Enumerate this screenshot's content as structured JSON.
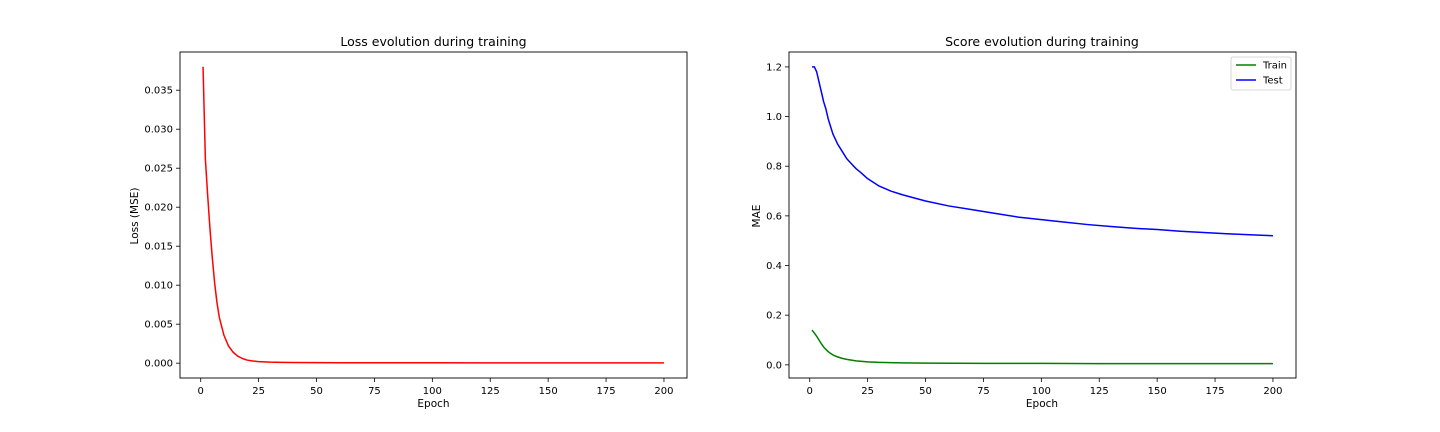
{
  "chart_data": [
    {
      "type": "line",
      "title": "Loss evolution during training",
      "xlabel": "Epoch",
      "ylabel": "Loss (MSE)",
      "xlim": [
        -8.95,
        209.95
      ],
      "ylim": [
        -0.0019,
        0.0399
      ],
      "xticks": [
        0,
        25,
        50,
        75,
        100,
        125,
        150,
        175,
        200
      ],
      "xtick_labels": [
        "0",
        "25",
        "50",
        "75",
        "100",
        "125",
        "150",
        "175",
        "200"
      ],
      "yticks": [
        0.0,
        0.005,
        0.01,
        0.015,
        0.02,
        0.025,
        0.03,
        0.035
      ],
      "ytick_labels": [
        "0.000",
        "0.005",
        "0.010",
        "0.015",
        "0.020",
        "0.025",
        "0.030",
        "0.035"
      ],
      "grid": false,
      "legend": null,
      "series": [
        {
          "name": "Loss",
          "color": "#ff0000",
          "x": [
            1,
            2,
            3,
            4,
            5,
            6,
            7,
            8,
            10,
            12,
            14,
            16,
            18,
            20,
            22,
            25,
            30,
            35,
            40,
            50,
            60,
            80,
            100,
            120,
            150,
            175,
            200
          ],
          "y": [
            0.038,
            0.0262,
            0.0215,
            0.0172,
            0.0135,
            0.0103,
            0.0078,
            0.0059,
            0.0036,
            0.0022,
            0.0014,
            0.0009,
            0.0006,
            0.0004,
            0.0003,
            0.0002,
            0.00013,
            0.0001,
            8e-05,
            7e-05,
            6e-05,
            5e-05,
            5e-05,
            4e-05,
            4e-05,
            4e-05,
            4e-05
          ]
        }
      ]
    },
    {
      "type": "line",
      "title": "Score evolution during training",
      "xlabel": "Epoch",
      "ylabel": "MAE",
      "xlim": [
        -8.95,
        209.95
      ],
      "ylim": [
        -0.053,
        1.26
      ],
      "xticks": [
        0,
        25,
        50,
        75,
        100,
        125,
        150,
        175,
        200
      ],
      "xtick_labels": [
        "0",
        "25",
        "50",
        "75",
        "100",
        "125",
        "150",
        "175",
        "200"
      ],
      "yticks": [
        0.0,
        0.2,
        0.4,
        0.6,
        0.8,
        1.0,
        1.2
      ],
      "ytick_labels": [
        "0.0",
        "0.2",
        "0.4",
        "0.6",
        "0.8",
        "1.0",
        "1.2"
      ],
      "grid": false,
      "legend": "top-right",
      "series": [
        {
          "name": "Train",
          "color": "#008000",
          "x": [
            1,
            2,
            3,
            4,
            5,
            6,
            7,
            8,
            9,
            10,
            12,
            14,
            16,
            18,
            20,
            25,
            30,
            40,
            50,
            75,
            100,
            125,
            150,
            175,
            200
          ],
          "y": [
            0.14,
            0.128,
            0.115,
            0.1,
            0.085,
            0.072,
            0.062,
            0.053,
            0.046,
            0.04,
            0.032,
            0.026,
            0.022,
            0.019,
            0.016,
            0.012,
            0.01,
            0.008,
            0.007,
            0.006,
            0.006,
            0.005,
            0.005,
            0.005,
            0.005
          ]
        },
        {
          "name": "Test",
          "color": "#0000ff",
          "x": [
            1,
            2,
            3,
            4,
            5,
            6,
            7,
            8,
            9,
            10,
            12,
            14,
            16,
            18,
            20,
            22,
            25,
            30,
            35,
            40,
            50,
            60,
            70,
            80,
            90,
            100,
            110,
            120,
            130,
            140,
            150,
            160,
            170,
            180,
            190,
            195,
            200
          ],
          "y": [
            1.2,
            1.2,
            1.18,
            1.14,
            1.1,
            1.06,
            1.03,
            0.99,
            0.96,
            0.93,
            0.89,
            0.86,
            0.83,
            0.81,
            0.79,
            0.775,
            0.75,
            0.72,
            0.7,
            0.685,
            0.66,
            0.64,
            0.625,
            0.61,
            0.595,
            0.585,
            0.575,
            0.565,
            0.557,
            0.55,
            0.545,
            0.538,
            0.533,
            0.528,
            0.524,
            0.522,
            0.52
          ]
        }
      ]
    }
  ]
}
